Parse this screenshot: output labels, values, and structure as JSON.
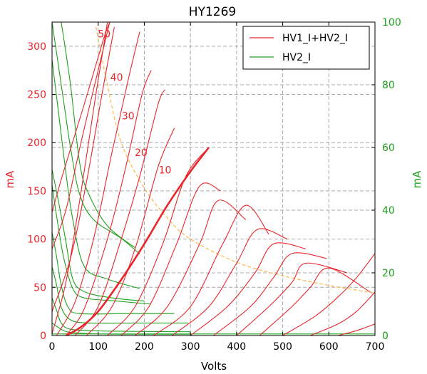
{
  "chart_data": {
    "type": "line",
    "title": "HY1269",
    "xlabel": "Volts",
    "ylabel_left": "mA",
    "ylabel_right": "mA",
    "xlim": [
      0,
      700
    ],
    "ylim_left": [
      0,
      325
    ],
    "ylim_right": [
      0,
      100
    ],
    "xticks": [
      0,
      100,
      200,
      300,
      400,
      500,
      600,
      700
    ],
    "yticks_left": [
      0,
      50,
      100,
      150,
      200,
      250,
      300
    ],
    "yticks_right": [
      0,
      20,
      40,
      60,
      80,
      100
    ],
    "grid": true,
    "legend_position": "top-right",
    "legend": [
      {
        "label": "HV1_I+HV2_I",
        "color": "#e8262c"
      },
      {
        "label": "HV2_I",
        "color": "#1ca21c"
      }
    ],
    "colors": {
      "left_axis": "#e8262c",
      "right_axis": "#1ca21c",
      "dissipation": "#ffb74d"
    },
    "dissipation_curve": {
      "axis": "left",
      "points": [
        [
          95,
          320
        ],
        [
          120,
          260
        ],
        [
          150,
          200
        ],
        [
          200,
          153
        ],
        [
          250,
          122
        ],
        [
          300,
          100
        ],
        [
          400,
          76
        ],
        [
          500,
          62
        ],
        [
          600,
          52
        ],
        [
          700,
          44
        ]
      ]
    },
    "dissipation_labels": [
      {
        "text": "50",
        "x": 113,
        "y": 309
      },
      {
        "text": "40",
        "x": 140,
        "y": 264
      },
      {
        "text": "30",
        "x": 165,
        "y": 224
      },
      {
        "text": "20",
        "x": 193,
        "y": 186
      },
      {
        "text": "10",
        "x": 245,
        "y": 168
      }
    ],
    "series_total": {
      "axis": "left",
      "curves": [
        [
          [
            0,
            2
          ],
          [
            30,
            55
          ],
          [
            60,
            140
          ],
          [
            95,
            250
          ],
          [
            120,
            325
          ]
        ],
        [
          [
            0,
            25
          ],
          [
            40,
            80
          ],
          [
            75,
            160
          ],
          [
            110,
            255
          ],
          [
            135,
            320
          ]
        ],
        [
          [
            0,
            90
          ],
          [
            30,
            130
          ],
          [
            65,
            205
          ],
          [
            110,
            295
          ],
          [
            125,
            325
          ]
        ],
        [
          [
            0,
            128
          ],
          [
            25,
            170
          ],
          [
            70,
            240
          ],
          [
            110,
            305
          ],
          [
            125,
            325
          ]
        ],
        [
          [
            10,
            0
          ],
          [
            50,
            35
          ],
          [
            90,
            100
          ],
          [
            130,
            190
          ],
          [
            165,
            265
          ],
          [
            190,
            315
          ]
        ],
        [
          [
            30,
            0
          ],
          [
            70,
            28
          ],
          [
            120,
            100
          ],
          [
            160,
            175
          ],
          [
            195,
            250
          ],
          [
            215,
            275
          ]
        ],
        [
          [
            50,
            0
          ],
          [
            100,
            30
          ],
          [
            150,
            100
          ],
          [
            190,
            165
          ],
          [
            230,
            240
          ],
          [
            245,
            255
          ]
        ],
        [
          [
            75,
            0
          ],
          [
            130,
            30
          ],
          [
            180,
            90
          ],
          [
            230,
            175
          ],
          [
            265,
            215
          ]
        ],
        [
          [
            120,
            0
          ],
          [
            180,
            30
          ],
          [
            240,
            95
          ],
          [
            290,
            165
          ],
          [
            340,
            195
          ]
        ],
        [
          [
            150,
            0
          ],
          [
            210,
            30
          ],
          [
            270,
            95
          ],
          [
            320,
            155
          ],
          [
            365,
            150
          ]
        ],
        [
          [
            180,
            0
          ],
          [
            250,
            30
          ],
          [
            320,
            95
          ],
          [
            360,
            140
          ],
          [
            420,
            120
          ]
        ],
        [
          [
            220,
            0
          ],
          [
            300,
            30
          ],
          [
            370,
            95
          ],
          [
            420,
            135
          ],
          [
            470,
            105
          ]
        ],
        [
          [
            260,
            0
          ],
          [
            340,
            30
          ],
          [
            400,
            75
          ],
          [
            445,
            110
          ],
          [
            510,
            100
          ]
        ],
        [
          [
            300,
            0
          ],
          [
            380,
            30
          ],
          [
            440,
            65
          ],
          [
            480,
            95
          ],
          [
            550,
            90
          ]
        ],
        [
          [
            350,
            0
          ],
          [
            430,
            30
          ],
          [
            480,
            60
          ],
          [
            520,
            85
          ],
          [
            595,
            80
          ]
        ],
        [
          [
            400,
            0
          ],
          [
            470,
            30
          ],
          [
            520,
            55
          ],
          [
            550,
            75
          ],
          [
            640,
            65
          ]
        ],
        [
          [
            450,
            0
          ],
          [
            520,
            30
          ],
          [
            560,
            50
          ],
          [
            600,
            70
          ],
          [
            690,
            45
          ]
        ],
        [
          [
            500,
            0
          ],
          [
            570,
            20
          ],
          [
            620,
            40
          ],
          [
            660,
            60
          ],
          [
            700,
            85
          ]
        ],
        [
          [
            560,
            0
          ],
          [
            620,
            12
          ],
          [
            660,
            25
          ],
          [
            700,
            45
          ]
        ],
        [
          [
            620,
            0
          ],
          [
            660,
            5
          ],
          [
            700,
            12
          ]
        ]
      ],
      "highlight": [
        [
          30,
          0
        ],
        [
          60,
          8
        ],
        [
          100,
          25
        ],
        [
          150,
          58
        ],
        [
          200,
          95
        ],
        [
          250,
          135
        ],
        [
          300,
          170
        ],
        [
          340,
          195
        ]
      ]
    },
    "series_hv2": {
      "axis": "right",
      "curves": [
        [
          [
            20,
            100
          ],
          [
            40,
            80
          ],
          [
            60,
            55
          ],
          [
            80,
            45
          ],
          [
            120,
            35
          ],
          [
            180,
            28
          ]
        ],
        [
          [
            0,
            100
          ],
          [
            20,
            80
          ],
          [
            40,
            60
          ],
          [
            60,
            45
          ],
          [
            90,
            37
          ],
          [
            150,
            31
          ],
          [
            190,
            26
          ]
        ],
        [
          [
            0,
            88
          ],
          [
            15,
            70
          ],
          [
            30,
            52
          ],
          [
            45,
            37
          ],
          [
            70,
            22
          ],
          [
            120,
            18
          ],
          [
            190,
            15
          ]
        ],
        [
          [
            0,
            53
          ],
          [
            15,
            42
          ],
          [
            30,
            30
          ],
          [
            45,
            18
          ],
          [
            70,
            14
          ],
          [
            130,
            12
          ],
          [
            200,
            11
          ]
        ],
        [
          [
            0,
            48
          ],
          [
            10,
            38
          ],
          [
            25,
            25
          ],
          [
            45,
            15
          ],
          [
            70,
            12
          ],
          [
            140,
            11
          ],
          [
            215,
            10
          ]
        ],
        [
          [
            0,
            33
          ],
          [
            10,
            25
          ],
          [
            20,
            16
          ],
          [
            35,
            9
          ],
          [
            60,
            7
          ],
          [
            160,
            7
          ],
          [
            265,
            7
          ]
        ],
        [
          [
            0,
            22
          ],
          [
            10,
            16
          ],
          [
            20,
            9
          ],
          [
            40,
            5
          ],
          [
            80,
            4
          ],
          [
            180,
            4
          ],
          [
            295,
            4
          ]
        ],
        [
          [
            0,
            12
          ],
          [
            10,
            8
          ],
          [
            20,
            4
          ],
          [
            40,
            2
          ],
          [
            100,
            1.5
          ],
          [
            200,
            1.3
          ],
          [
            300,
            1.2
          ]
        ],
        [
          [
            0,
            4
          ],
          [
            20,
            2
          ],
          [
            40,
            1
          ],
          [
            100,
            0.5
          ],
          [
            200,
            0.4
          ],
          [
            300,
            0.4
          ]
        ],
        [
          [
            0,
            0.5
          ],
          [
            700,
            0.5
          ]
        ]
      ]
    }
  }
}
